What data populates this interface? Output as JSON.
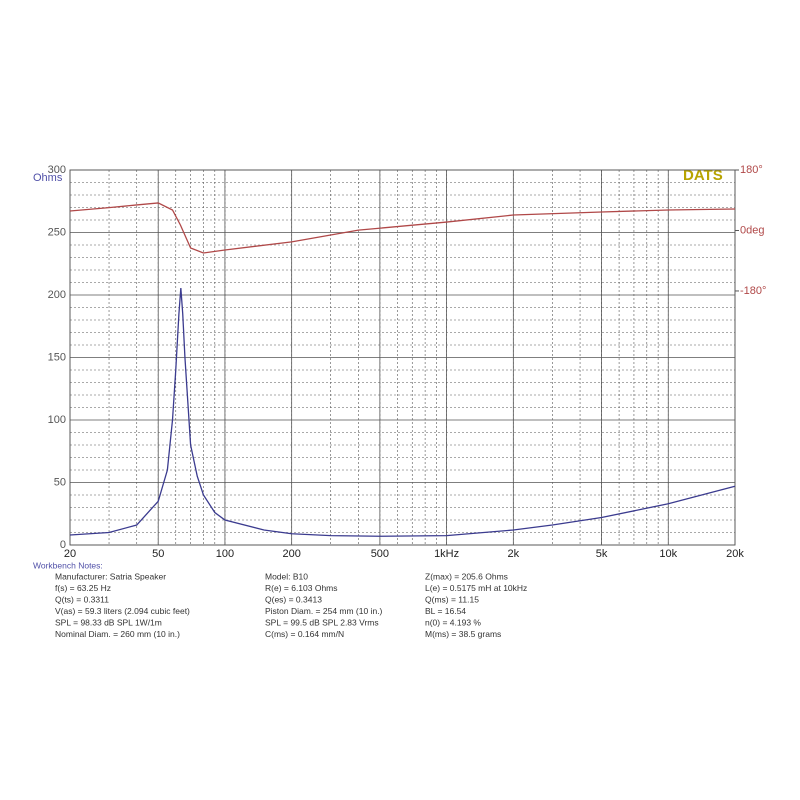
{
  "chart_data": {
    "type": "line",
    "y_label": "Ohms",
    "logo": "DATS",
    "xscale": "log",
    "xlim": [
      20,
      20000
    ],
    "xticks": [
      20,
      50,
      100,
      200,
      500,
      {
        "value": 1000,
        "label": "1kHz"
      },
      {
        "value": 2000,
        "label": "2k"
      },
      {
        "value": 5000,
        "label": "5k"
      },
      {
        "value": 10000,
        "label": "10k"
      },
      {
        "value": 20000,
        "label": "20k"
      }
    ],
    "ylim": [
      0,
      300
    ],
    "yticks": [
      0,
      50,
      100,
      150,
      200,
      250,
      300
    ],
    "y2lim": [
      -936,
      180
    ],
    "y2ticks": [
      {
        "value": 180,
        "label": "180°"
      },
      {
        "value": 0,
        "label": "0deg"
      },
      {
        "value": -180,
        "label": "-180°"
      }
    ],
    "grid": true,
    "series": [
      {
        "name": "Impedance",
        "color": "#3b3b8f",
        "x": [
          20,
          30,
          40,
          50,
          55,
          58,
          60,
          62,
          63.25,
          64.5,
          66,
          70,
          75,
          80,
          90,
          100,
          150,
          200,
          300,
          500,
          1000,
          2000,
          3000,
          5000,
          10000,
          20000
        ],
        "values": [
          8,
          10,
          16,
          35,
          60,
          100,
          140,
          185,
          205.6,
          185,
          150,
          80,
          55,
          40,
          26,
          20,
          12,
          9,
          7.5,
          7,
          7.5,
          12,
          16,
          22,
          33,
          47
        ]
      },
      {
        "name": "Phase",
        "color": "#b04848",
        "axis": "y2",
        "x": [
          20,
          30,
          40,
          50,
          58,
          63,
          70,
          80,
          100,
          200,
          400,
          1000,
          2000,
          5000,
          10000,
          20000
        ],
        "values": [
          58,
          68,
          76,
          82,
          61,
          16,
          -52,
          -67,
          -58,
          -34,
          1,
          25,
          46,
          55,
          61,
          64
        ]
      }
    ],
    "notes": {
      "title": "Workbench Notes:",
      "rows": [
        [
          "Manufacturer:  Satria Speaker",
          "Model:  B10",
          "Z(max) = 205.6 Ohms"
        ],
        [
          "f(s) = 63.25 Hz",
          "R(e) = 6.103 Ohms",
          "L(e) = 0.5175 mH at 10kHz"
        ],
        [
          "Q(ts) = 0.3311",
          "Q(es) = 0.3413",
          "Q(ms) = 11.15"
        ],
        [
          "V(as) = 59.3 liters  (2.094 cubic feet)",
          "Piston Diam. = 254 mm (10 in.)",
          "BL = 16.54"
        ],
        [
          "SPL = 98.33 dB SPL 1W/1m",
          "SPL = 99.5 dB SPL 2.83 Vrms",
          "n(0) = 4.193 %"
        ],
        [
          "Nominal Diam. = 260 mm (10 in.)",
          "C(ms) = 0.164 mm/N",
          "M(ms) = 38.5 grams"
        ]
      ]
    }
  }
}
